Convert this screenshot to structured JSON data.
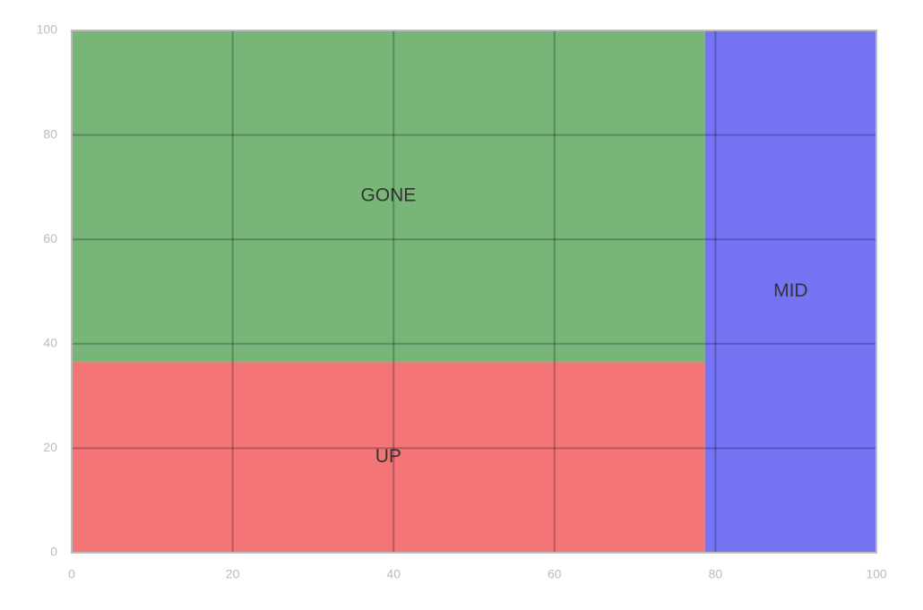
{
  "chart_data": {
    "type": "treemap",
    "labels": [
      "GONE",
      "UP",
      "MID"
    ],
    "values": [
      50,
      28.7,
      21.3
    ],
    "colors": [
      "#77b677",
      "#f47575",
      "#7575f4"
    ],
    "xlim": [
      0,
      100
    ],
    "ylim": [
      0,
      100
    ],
    "xticks": [
      0,
      20,
      40,
      60,
      80,
      100
    ],
    "yticks": [
      0,
      20,
      40,
      60,
      80,
      100
    ],
    "grid": true
  }
}
